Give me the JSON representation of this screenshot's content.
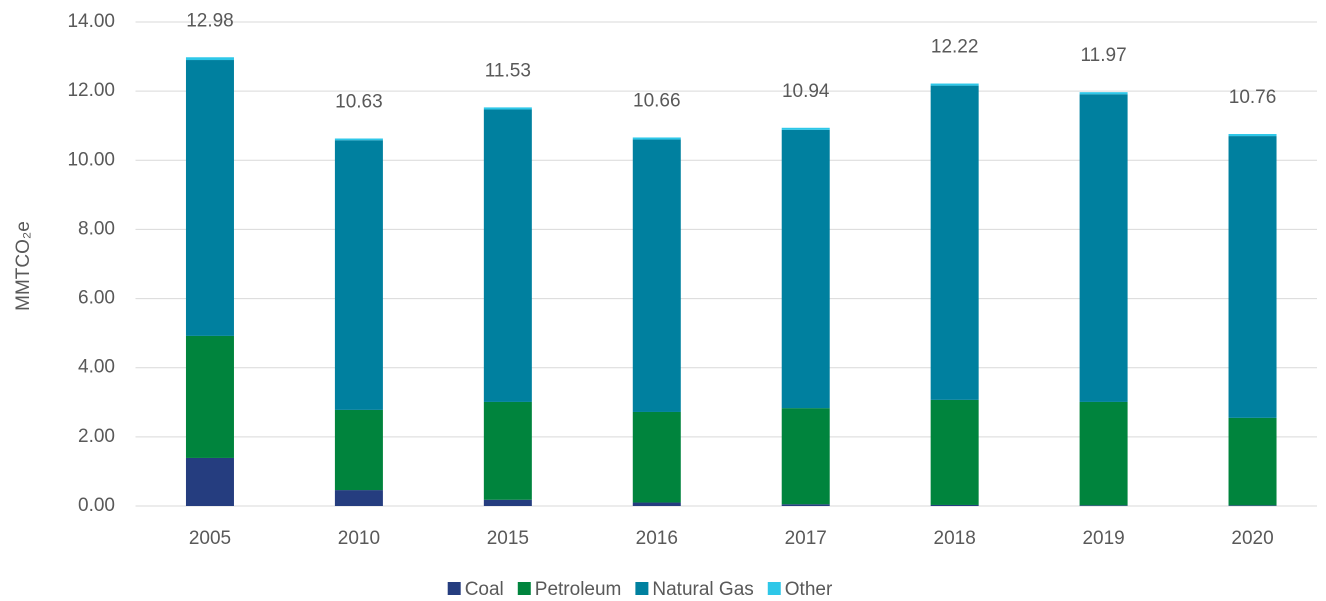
{
  "chart_data": {
    "type": "stacked-bar",
    "y_label": "MMTCO₂e",
    "categories": [
      "2005",
      "2010",
      "2015",
      "2016",
      "2017",
      "2018",
      "2019",
      "2020"
    ],
    "series": [
      {
        "name": "Coal",
        "color": "#253d7f",
        "values": [
          1.39,
          0.46,
          0.18,
          0.1,
          0.05,
          0.03,
          0.02,
          0.02
        ]
      },
      {
        "name": "Petroleum",
        "color": "#00843d",
        "values": [
          3.53,
          2.32,
          2.83,
          2.62,
          2.78,
          3.04,
          2.99,
          2.53
        ]
      },
      {
        "name": "Natural Gas",
        "color": "#00809f",
        "values": [
          7.98,
          7.8,
          8.46,
          7.88,
          8.05,
          9.09,
          8.9,
          8.15
        ]
      },
      {
        "name": "Other",
        "color": "#2ec7e8",
        "values": [
          0.08,
          0.05,
          0.06,
          0.06,
          0.06,
          0.06,
          0.06,
          0.06
        ]
      }
    ],
    "totals": [
      12.98,
      10.63,
      11.53,
      10.66,
      10.94,
      12.22,
      11.97,
      10.76
    ],
    "ylim": [
      0,
      14
    ],
    "yticks": [
      {
        "value": 0,
        "label": "0.00"
      },
      {
        "value": 2,
        "label": "2.00"
      },
      {
        "value": 4,
        "label": "4.00"
      },
      {
        "value": 6,
        "label": "6.00"
      },
      {
        "value": 8,
        "label": "8.00"
      },
      {
        "value": 10,
        "label": "10.00"
      },
      {
        "value": 12,
        "label": "12.00"
      },
      {
        "value": 14,
        "label": "14.00"
      }
    ],
    "grid": true
  }
}
